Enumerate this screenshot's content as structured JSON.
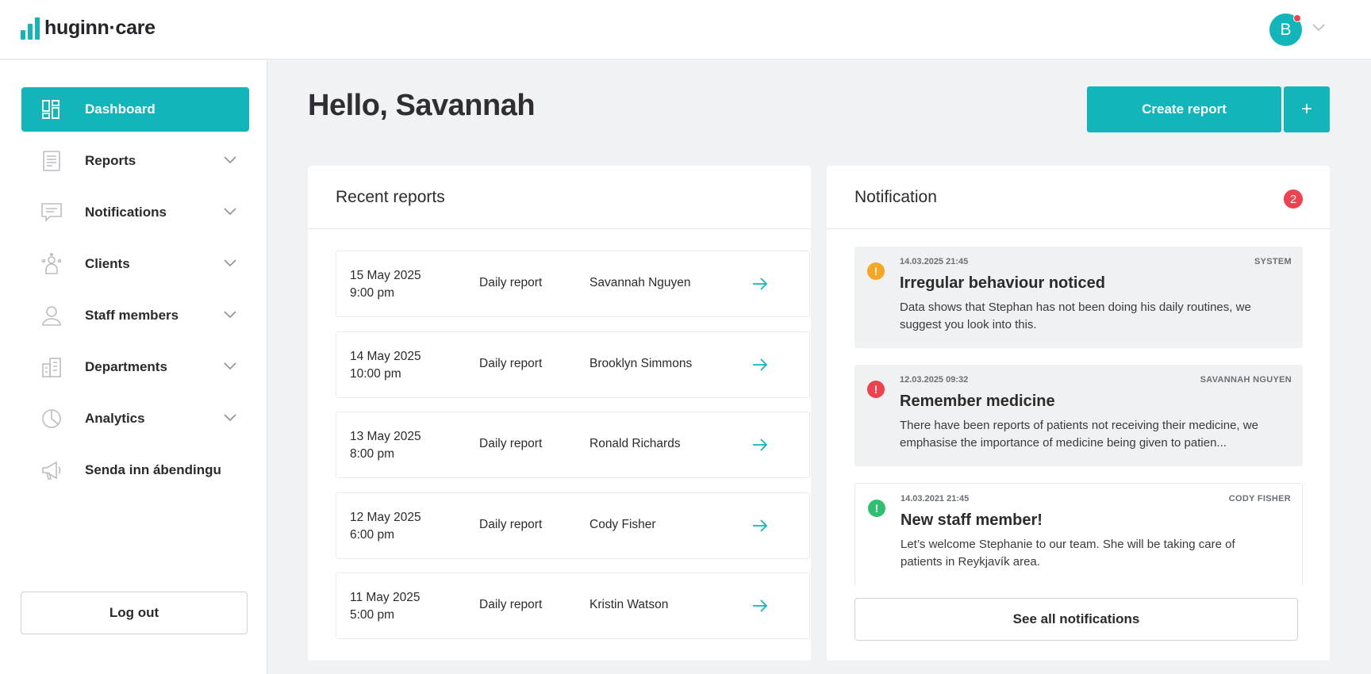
{
  "brand": {
    "name": "huginn·care"
  },
  "user": {
    "avatar_initial": "B"
  },
  "sidebar": {
    "items": [
      {
        "label": "Dashboard"
      },
      {
        "label": "Reports"
      },
      {
        "label": "Notifications"
      },
      {
        "label": "Clients"
      },
      {
        "label": "Staff members"
      },
      {
        "label": "Departments"
      },
      {
        "label": "Analytics"
      },
      {
        "label": "Senda inn ábendingu"
      }
    ],
    "logout_label": "Log out"
  },
  "header": {
    "greeting": "Hello, Savannah",
    "create_label": "Create report",
    "plus_label": "+"
  },
  "recent_reports": {
    "title": "Recent reports",
    "rows": [
      {
        "date": "15 May 2025",
        "time": "9:00 pm",
        "type": "Daily report",
        "name": "Savannah Nguyen"
      },
      {
        "date": "14 May 2025",
        "time": "10:00 pm",
        "type": "Daily report",
        "name": "Brooklyn Simmons"
      },
      {
        "date": "13 May 2025",
        "time": "8:00 pm",
        "type": "Daily report",
        "name": "Ronald Richards"
      },
      {
        "date": "12 May 2025",
        "time": "6:00 pm",
        "type": "Daily report",
        "name": "Cody Fisher"
      },
      {
        "date": "11 May 2025",
        "time": "5:00 pm",
        "type": "Daily report",
        "name": "Kristin Watson"
      }
    ]
  },
  "notifications": {
    "title": "Notification",
    "count": "2",
    "items": [
      {
        "timestamp": "14.03.2025 21:45",
        "source": "SYSTEM",
        "title": "Irregular behaviour noticed",
        "body": "Data shows that Stephan has not been doing his daily routines, we suggest you look into this.",
        "level_color": "#f5a623",
        "icon_symbol": "!"
      },
      {
        "timestamp": "12.03.2025 09:32",
        "source": "SAVANNAH NGUYEN",
        "title": "Remember medicine",
        "body": "There have been reports of patients not receiving their medicine, we emphasise the importance of medicine being given to patien...",
        "level_color": "#f0424e",
        "icon_symbol": "!"
      },
      {
        "timestamp": "14.03.2021 21:45",
        "source": "CODY FISHER",
        "title": "New staff member!",
        "body": "Let’s welcome Stephanie to our team. She will be taking care of patients in Reykjavík area.",
        "level_color": "#2fbf71",
        "icon_symbol": "!"
      }
    ],
    "see_all_label": "See all notifications"
  },
  "colors": {
    "accent": "#11b5ba",
    "danger": "#f0424e",
    "warning": "#f5a623",
    "success": "#2fbf71"
  }
}
